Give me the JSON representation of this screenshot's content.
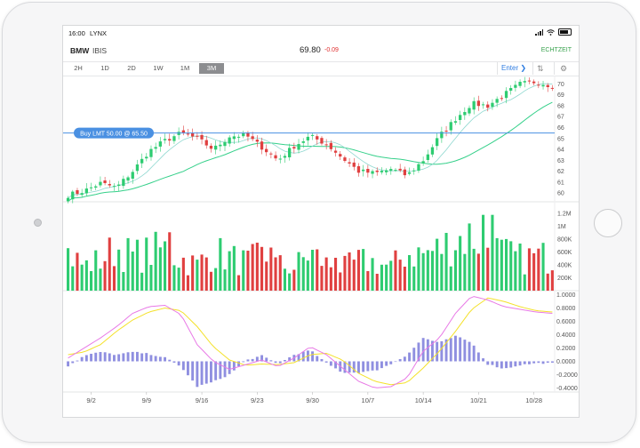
{
  "status": {
    "time": "16:00",
    "carrier": "LYNX"
  },
  "header": {
    "symbol": "BMW",
    "exchange": "IBIS",
    "price": "69.80",
    "change": "-0.09",
    "realtime": "ECHTZEIT",
    "change_color": "#e03131",
    "realtime_color": "#3aa34f"
  },
  "toolbar": {
    "timeframes": [
      "2H",
      "1D",
      "2D",
      "1W",
      "1M",
      "3M"
    ],
    "active": "3M",
    "enter_label": "Enter"
  },
  "order_line": {
    "label": "Buy LMT 50.00 @ 65.50",
    "price": 65.5,
    "color": "#4a90e2"
  },
  "chart_data": {
    "type": "candlestick",
    "price_axis": {
      "ticks": [
        60,
        61,
        62,
        63,
        64,
        65,
        66,
        67,
        68,
        69,
        70
      ],
      "range": [
        59.2,
        70.6
      ]
    },
    "volume_axis": {
      "ticks": [
        "200K",
        "400K",
        "600K",
        "800K",
        "1M",
        "1.2M"
      ],
      "values": [
        200000,
        400000,
        600000,
        800000,
        1000000,
        1200000
      ],
      "max": 1300000
    },
    "macd_axis": {
      "ticks": [
        "1.0000",
        "0.8000",
        "0.6000",
        "0.4000",
        "0.2000",
        "0.0000",
        "-0.2000",
        "-0.4000"
      ],
      "values": [
        1.0,
        0.8,
        0.6,
        0.4,
        0.2,
        0.0,
        -0.2,
        -0.4
      ],
      "range": [
        -0.46,
        1.06
      ]
    },
    "x_labels": [
      {
        "label": "9/2",
        "index": 5
      },
      {
        "label": "9/9",
        "index": 17
      },
      {
        "label": "9/16",
        "index": 29
      },
      {
        "label": "9/23",
        "index": 41
      },
      {
        "label": "9/30",
        "index": 53
      },
      {
        "label": "10/7",
        "index": 65
      },
      {
        "label": "10/14",
        "index": 77
      },
      {
        "label": "10/21",
        "index": 89
      },
      {
        "label": "10/28",
        "index": 101
      }
    ],
    "close_key": [
      59.8,
      60.2,
      60.9,
      60.5,
      62.0,
      63.8,
      64.8,
      65.5,
      65.0,
      64.0,
      65.2,
      65.3,
      64.2,
      63.0,
      64.3,
      65.2,
      64.5,
      63.2,
      62.0,
      61.8,
      62.2,
      61.6,
      63.0,
      65.2,
      66.8,
      68.2,
      68.0,
      69.0,
      70.0,
      70.2,
      69.8
    ],
    "volume_key": [
      620000,
      400000,
      500000,
      700000,
      560000,
      620000,
      680000,
      520000,
      420000,
      640000,
      540000,
      460000,
      560000,
      420000,
      380000,
      620000,
      440000,
      360000,
      480000,
      460000,
      380000,
      620000,
      600000,
      680000,
      840000,
      900000,
      760000,
      600000,
      520000,
      560000,
      540000
    ],
    "macd_key": [
      0.05,
      0.2,
      0.35,
      0.52,
      0.72,
      0.82,
      0.84,
      0.7,
      0.25,
      0.0,
      -0.12,
      -0.05,
      0.02,
      -0.08,
      0.05,
      0.22,
      0.1,
      -0.1,
      -0.3,
      -0.4,
      -0.38,
      -0.25,
      0.15,
      0.35,
      0.72,
      0.98,
      0.92,
      0.82,
      0.78,
      0.74,
      0.72
    ],
    "signal_key": [
      0.1,
      0.14,
      0.25,
      0.45,
      0.62,
      0.74,
      0.8,
      0.76,
      0.52,
      0.22,
      0.02,
      -0.06,
      -0.04,
      -0.05,
      -0.02,
      0.1,
      0.12,
      0.02,
      -0.18,
      -0.3,
      -0.35,
      -0.32,
      -0.1,
      0.15,
      0.45,
      0.78,
      0.95,
      0.9,
      0.82,
      0.76,
      0.74
    ],
    "colors": {
      "up": "#2ecc71",
      "down": "#e04040",
      "ma_fast": "#8fd8d0",
      "ma_slow": "#35d08a",
      "macd": "#e879e6",
      "signal": "#f4e12a",
      "histogram": "#8f8fe0"
    }
  }
}
